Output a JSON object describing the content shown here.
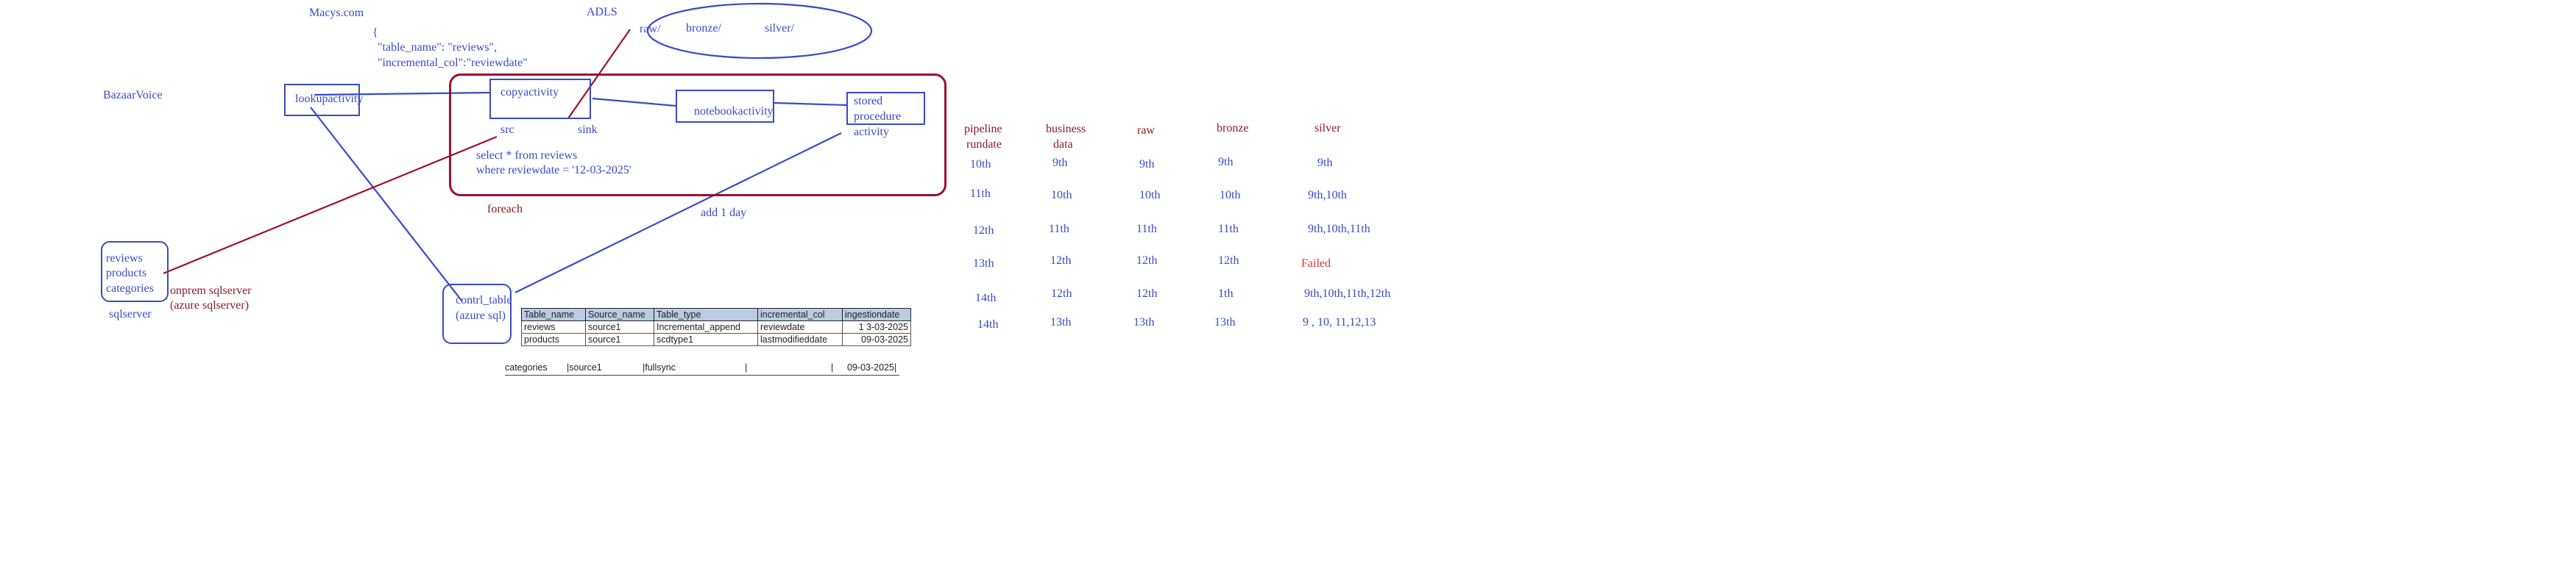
{
  "sources": {
    "macys": "Macys.com",
    "bazaarvoice": "BazaarVoice",
    "adls": "ADLS"
  },
  "json_config": {
    "brace": "{",
    "line1": "\"table_name\": \"reviews\",",
    "line2": "\"incremental_col\":\"reviewdate\""
  },
  "adls_folders": {
    "raw": "raw/",
    "bronze": "bronze/",
    "silver": "silver/"
  },
  "activities": {
    "lookup": "lookupactivity",
    "copy": "copyactivity",
    "src": "src",
    "sink": "sink",
    "notebook": "notebookactivity",
    "stored_line1": "stored",
    "stored_line2": "procedure",
    "stored_line3": "activity",
    "query_line1": "select * from reviews",
    "query_line2": "where reviewdate = '12-03-2025'",
    "foreach": "foreach",
    "add_day": "add 1 day"
  },
  "sqlserver": {
    "tables": [
      "reviews",
      "products",
      "categories"
    ],
    "label": "sqlserver",
    "onprem": "onprem sqlserver",
    "azure": "(azure sqlserver)"
  },
  "control_table": {
    "label_line1": "contrl_table",
    "label_line2": "(azure sql)",
    "headers": [
      "Table_name",
      "Source_name",
      "Table_type",
      "incremental_col",
      "ingestiondate"
    ],
    "rows": [
      [
        "reviews",
        "source1",
        "Incremental_append",
        "reviewdate",
        "1 3-03-2025"
      ],
      [
        "products",
        "source1",
        "scdtype1",
        "lastmodifieddate",
        "09-03-2025"
      ]
    ],
    "extra_row": [
      "categories",
      "|source1",
      "|fullsync",
      "|",
      "|",
      "09-03-2025|"
    ]
  },
  "run_table": {
    "headers": {
      "pipeline_line1": "pipeline",
      "pipeline_line2": "rundate",
      "business_line1": "business",
      "business_line2": "data",
      "raw": "raw",
      "bronze": "bronze",
      "silver": "silver"
    },
    "rows": [
      {
        "pipeline": "10th",
        "business": "9th",
        "raw": "9th",
        "bronze": "9th",
        "silver": "9th"
      },
      {
        "pipeline": "11th",
        "business": "10th",
        "raw": "10th",
        "bronze": "10th",
        "silver": "9th,10th"
      },
      {
        "pipeline": "12th",
        "business": "11th",
        "raw": "11th",
        "bronze": "11th",
        "silver": "9th,10th,11th"
      },
      {
        "pipeline": "13th",
        "business": "12th",
        "raw": "12th",
        "bronze": "12th",
        "silver": "Failed"
      },
      {
        "pipeline": "14th",
        "business": "12th",
        "raw": "12th",
        "bronze": "1th",
        "silver": "9th,10th,11th,12th"
      },
      {
        "pipeline": "14th",
        "business": "13th",
        "raw": "13th",
        "bronze": "13th",
        "silver": "9 , 10, 11,12,13"
      }
    ],
    "colors": {
      "header": "#8b1a2b",
      "value": "#3a49c8",
      "failed": "#e0302e"
    }
  },
  "colors": {
    "blue": "#3a49c8",
    "dark_red": "#9a1230"
  }
}
